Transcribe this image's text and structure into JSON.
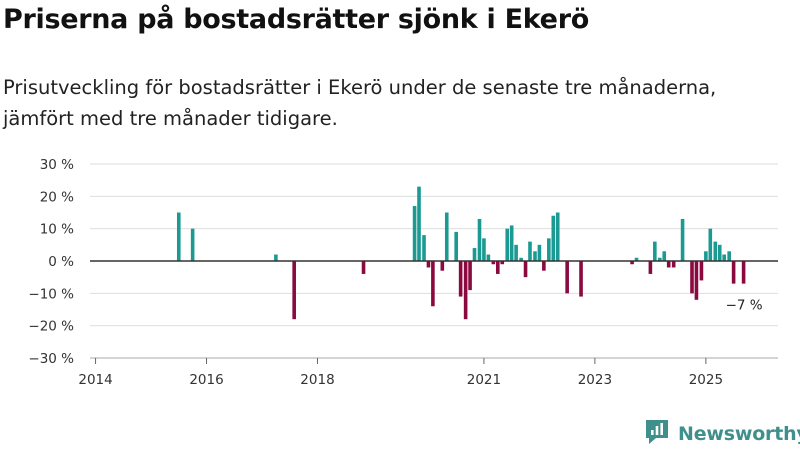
{
  "title": "Priserna på bostadsrätter sjönk i Ekerö",
  "subtitle": "Prisutveckling för bostadsrätter i Ekerö under de senaste tre månaderna, jämfört med tre månader tidigare.",
  "brand": {
    "name": "Newsworthy",
    "color": "#3f8f8c",
    "icon": "newsworthy-logo-icon"
  },
  "colors": {
    "positive": "#1a9a93",
    "negative": "#8a0a3f",
    "grid": "#dedede",
    "zero_line": "#333333",
    "axis": "#aaaaaa"
  },
  "chart_data": {
    "type": "bar",
    "title": "Priserna på bostadsrätter sjönk i Ekerö",
    "xlabel": "",
    "ylabel": "",
    "unit": "%",
    "ylim": [
      -30,
      30
    ],
    "yticks": [
      30,
      20,
      10,
      0,
      -10,
      -20,
      -30
    ],
    "ytick_labels": [
      "30 %",
      "20 %",
      "10 %",
      "0 %",
      "−10 %",
      "−20 %",
      "−30 %"
    ],
    "xlim": [
      2014,
      2026.3
    ],
    "xticks": [
      2014,
      2016,
      2018,
      2021,
      2023,
      2025
    ],
    "xtick_labels": [
      "2014",
      "2016",
      "2018",
      "2021",
      "2023",
      "2025"
    ],
    "grid": true,
    "annotation": {
      "text": "−7 %",
      "x": 2025.68,
      "y": -7
    },
    "x": [
      2015.5,
      2015.75,
      2017.25,
      2017.58,
      2018.83,
      2019.75,
      2019.83,
      2019.92,
      2020.0,
      2020.08,
      2020.25,
      2020.33,
      2020.5,
      2020.58,
      2020.67,
      2020.75,
      2020.83,
      2020.92,
      2021.0,
      2021.08,
      2021.17,
      2021.25,
      2021.33,
      2021.42,
      2021.5,
      2021.58,
      2021.67,
      2021.75,
      2021.83,
      2021.92,
      2022.0,
      2022.08,
      2022.17,
      2022.25,
      2022.33,
      2022.5,
      2022.75,
      2023.67,
      2023.75,
      2024.0,
      2024.08,
      2024.17,
      2024.25,
      2024.33,
      2024.42,
      2024.58,
      2024.75,
      2024.83,
      2024.92,
      2025.0,
      2025.08,
      2025.17,
      2025.25,
      2025.33,
      2025.42,
      2025.5,
      2025.68
    ],
    "values": [
      15,
      10,
      2,
      -18,
      -4,
      17,
      23,
      8,
      -2,
      -14,
      -3,
      15,
      9,
      -11,
      -18,
      -9,
      4,
      13,
      7,
      2,
      -1,
      -4,
      -1,
      10,
      11,
      5,
      1,
      -5,
      6,
      3,
      5,
      -3,
      7,
      14,
      15,
      -10,
      -11,
      -1,
      1,
      -4,
      6,
      1,
      3,
      -2,
      -2,
      13,
      -10,
      -12,
      -6,
      3,
      10,
      6,
      5,
      2,
      3,
      -7,
      -7
    ]
  }
}
